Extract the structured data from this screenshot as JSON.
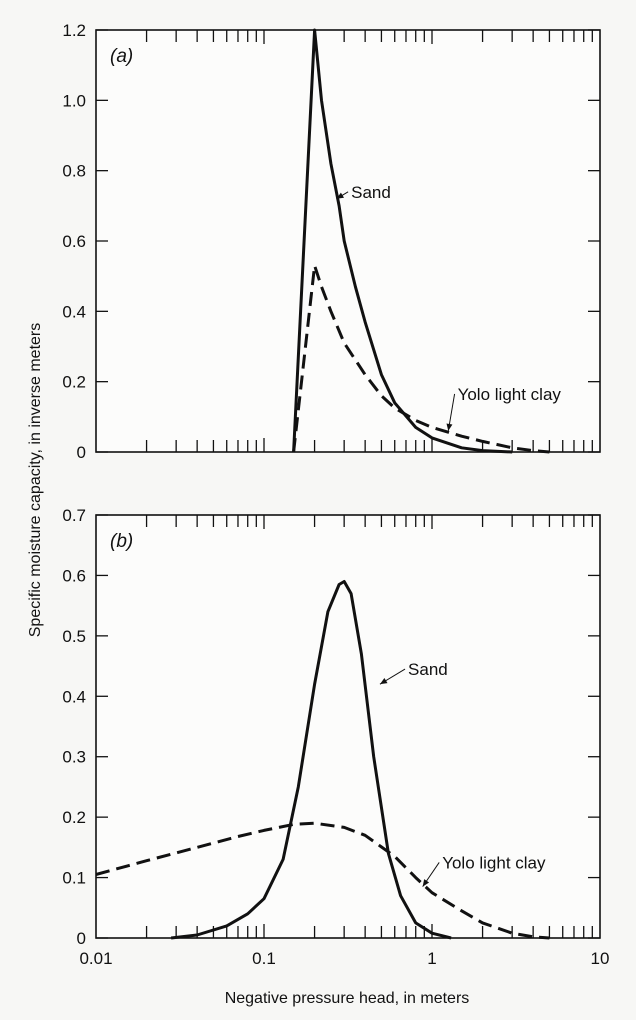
{
  "ylabel": "Specific moisture capacity, in inverse meters",
  "xlabel": "Negative pressure head, in meters",
  "colors": {
    "line": "#111111",
    "plot_bg": "#fcfcfb"
  },
  "chart_data": [
    {
      "type": "line",
      "panel_label": "(a)",
      "x_scale": "log",
      "xlim": [
        0.01,
        10
      ],
      "ylim": [
        0,
        1.2
      ],
      "x_ticks": [
        "0.01",
        "0.1",
        "1",
        "10"
      ],
      "y_ticks": [
        "0",
        "0.2",
        "0.4",
        "0.6",
        "0.8",
        "1.0",
        "1.2"
      ],
      "y_tick_values": [
        0,
        0.2,
        0.4,
        0.6,
        0.8,
        1.0,
        1.2
      ],
      "series": [
        {
          "name": "Sand",
          "style": "solid",
          "x": [
            0.15,
            0.2,
            0.22,
            0.25,
            0.28,
            0.3,
            0.35,
            0.4,
            0.5,
            0.6,
            0.8,
            1.0,
            1.5,
            2.0,
            3.0
          ],
          "y": [
            0,
            1.2,
            1.0,
            0.82,
            0.7,
            0.6,
            0.47,
            0.37,
            0.22,
            0.14,
            0.07,
            0.04,
            0.012,
            0.004,
            0
          ]
        },
        {
          "name": "Yolo light clay",
          "style": "dashed",
          "x": [
            0.15,
            0.2,
            0.22,
            0.25,
            0.3,
            0.4,
            0.5,
            0.6,
            0.8,
            1.0,
            1.5,
            2.0,
            3.0,
            4.0,
            5.0
          ],
          "y": [
            0,
            0.53,
            0.47,
            0.4,
            0.31,
            0.22,
            0.16,
            0.125,
            0.09,
            0.07,
            0.045,
            0.03,
            0.012,
            0.004,
            0
          ]
        }
      ],
      "annotations": [
        {
          "text": "Sand",
          "x": 0.33,
          "y": 0.74,
          "arrow_to": [
            0.27,
            0.72
          ]
        },
        {
          "text": "Yolo light clay",
          "x": 1.42,
          "y": 0.165,
          "arrow_to": [
            1.25,
            0.06
          ]
        }
      ]
    },
    {
      "type": "line",
      "panel_label": "(b)",
      "x_scale": "log",
      "xlim": [
        0.01,
        10
      ],
      "ylim": [
        0,
        0.7
      ],
      "x_ticks": [
        "0.01",
        "0.1",
        "1",
        "10"
      ],
      "y_ticks": [
        "0",
        "0.1",
        "0.2",
        "0.3",
        "0.4",
        "0.5",
        "0.6",
        "0.7"
      ],
      "y_tick_values": [
        0,
        0.1,
        0.2,
        0.3,
        0.4,
        0.5,
        0.6,
        0.7
      ],
      "series": [
        {
          "name": "Sand",
          "style": "solid",
          "x": [
            0.028,
            0.04,
            0.06,
            0.08,
            0.1,
            0.13,
            0.16,
            0.2,
            0.24,
            0.28,
            0.3,
            0.33,
            0.38,
            0.45,
            0.55,
            0.65,
            0.8,
            1.0,
            1.3
          ],
          "y": [
            0,
            0.005,
            0.02,
            0.04,
            0.065,
            0.13,
            0.25,
            0.42,
            0.54,
            0.585,
            0.59,
            0.57,
            0.47,
            0.3,
            0.14,
            0.07,
            0.025,
            0.008,
            0
          ]
        },
        {
          "name": "Yolo light clay",
          "style": "dashed",
          "x": [
            0.01,
            0.02,
            0.04,
            0.07,
            0.1,
            0.15,
            0.2,
            0.3,
            0.4,
            0.6,
            0.8,
            1.0,
            1.5,
            2.0,
            3.0,
            4.0,
            5.0
          ],
          "y": [
            0.105,
            0.128,
            0.15,
            0.168,
            0.178,
            0.188,
            0.19,
            0.183,
            0.17,
            0.135,
            0.1,
            0.075,
            0.045,
            0.025,
            0.008,
            0.002,
            0
          ]
        }
      ],
      "annotations": [
        {
          "text": "Sand",
          "x": 0.72,
          "y": 0.445,
          "arrow_to": [
            0.49,
            0.42
          ]
        },
        {
          "text": "Yolo light clay",
          "x": 1.15,
          "y": 0.125,
          "arrow_to": [
            0.88,
            0.085
          ]
        }
      ]
    }
  ]
}
